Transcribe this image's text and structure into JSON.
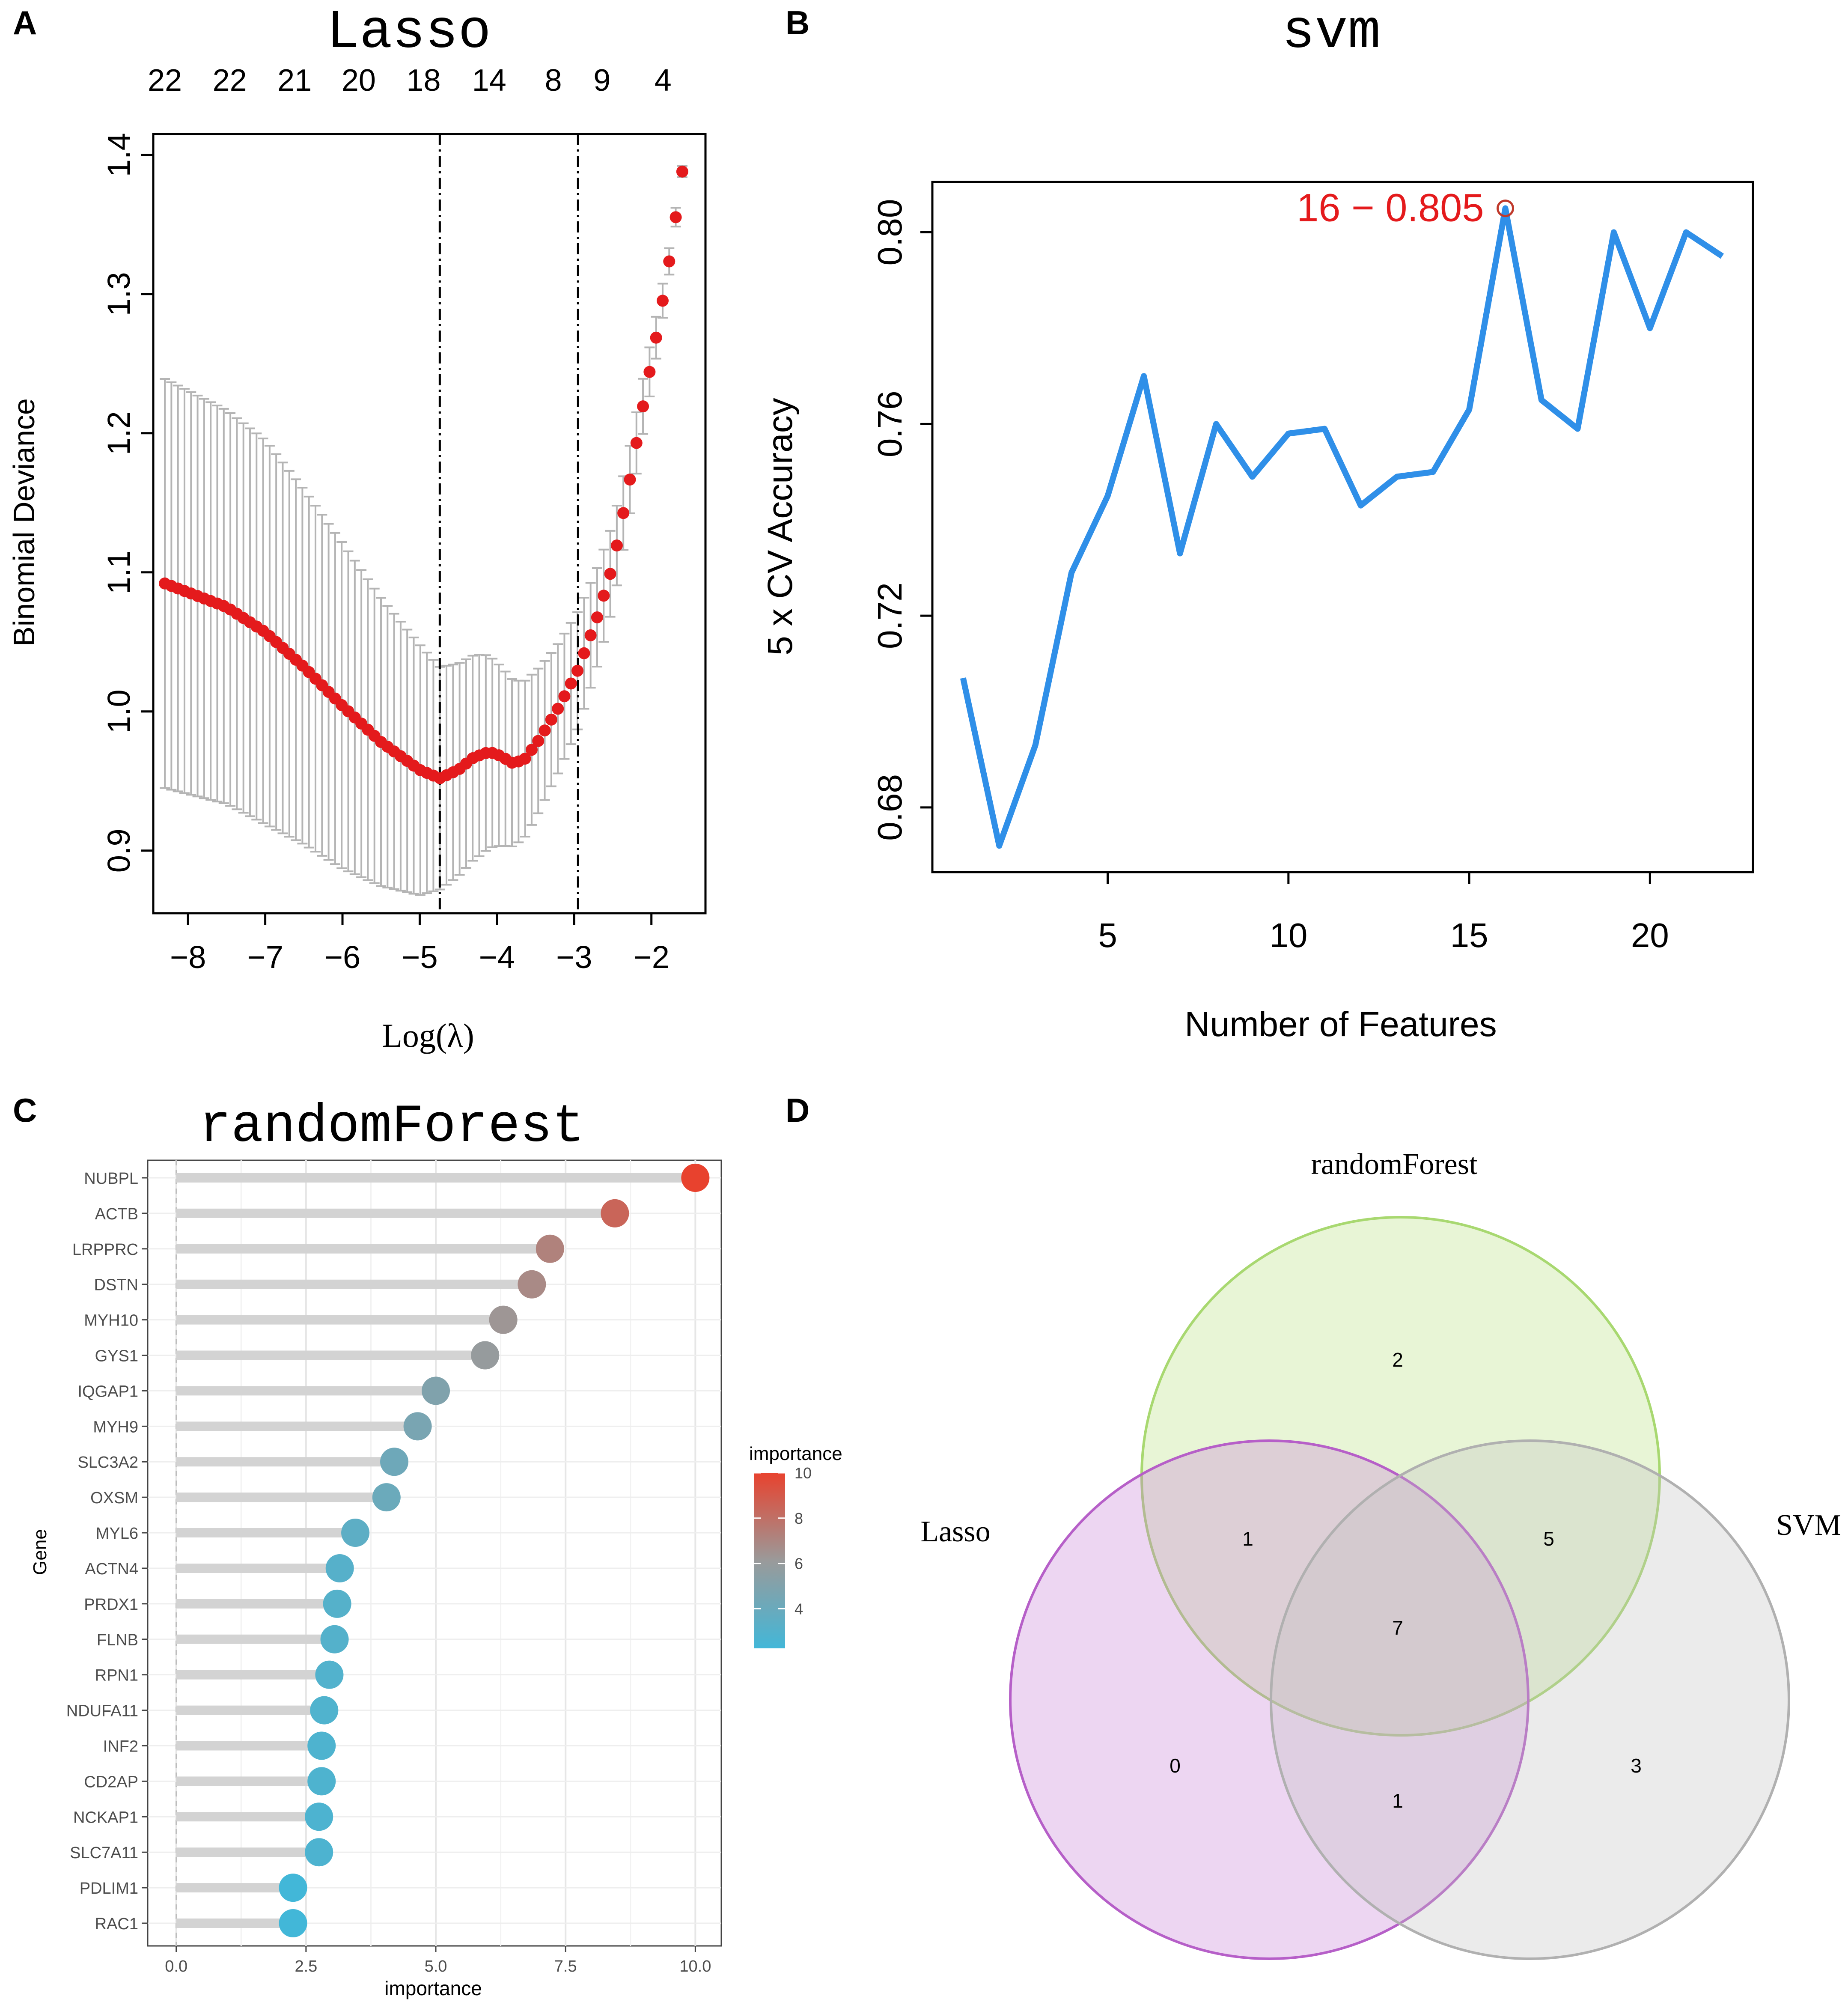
{
  "colors": {
    "lasso_point": "#e41a1c",
    "lasso_errorbar": "#b4b4b4",
    "svm_line": "#2f8fe8",
    "svm_annot": "#e41a1c",
    "rf_stem": "#d3d3d3",
    "rf_low": "#42b7d8",
    "rf_mid": "#9a9a9a",
    "rf_high": "#e8422e",
    "venn_rf": "#b9e07f",
    "venn_lasso": "#c77fd6",
    "venn_svm": "#c0c0c0"
  },
  "panels": {
    "A": {
      "label": "A"
    },
    "B": {
      "label": "B"
    },
    "C": {
      "label": "C"
    },
    "D": {
      "label": "D"
    }
  },
  "chart_data": [
    {
      "id": "lasso",
      "type": "scatter",
      "title": "Lasso",
      "xlabel": "Log(λ)",
      "ylabel": "Binomial Deviance",
      "xlim": [
        -8.45,
        -1.3
      ],
      "ylim": [
        0.855,
        1.415
      ],
      "xticks": [
        -8,
        -7,
        -6,
        -5,
        -4,
        -3,
        -2
      ],
      "xtick_labels": [
        "−8",
        "−7",
        "−6",
        "−5",
        "−4",
        "−3",
        "−2"
      ],
      "yticks": [
        0.9,
        1.0,
        1.1,
        1.2,
        1.3,
        1.4
      ],
      "ytick_labels": [
        "0.9",
        "1.0",
        "1.1",
        "1.2",
        "1.3",
        "1.4"
      ],
      "top_axis_labels": [
        "22",
        "22",
        "21",
        "20",
        "18",
        "14",
        "8",
        "9",
        "4"
      ],
      "top_axis_positions": [
        -8.3,
        -7.46,
        -6.62,
        -5.79,
        -4.95,
        -4.1,
        -3.27,
        -2.64,
        -1.85
      ],
      "vlines": [
        -4.74,
        -2.95
      ],
      "x_start": -8.3,
      "x_end": -1.6,
      "n_points": 80,
      "curve_anchors": [
        [
          -8.3,
          1.092
        ],
        [
          -7.5,
          1.075
        ],
        [
          -7.0,
          1.057
        ],
        [
          -6.5,
          1.032
        ],
        [
          -6.0,
          1.004
        ],
        [
          -5.5,
          0.978
        ],
        [
          -5.0,
          0.958
        ],
        [
          -4.74,
          0.952
        ],
        [
          -4.5,
          0.958
        ],
        [
          -4.3,
          0.967
        ],
        [
          -4.1,
          0.971
        ],
        [
          -3.95,
          0.968
        ],
        [
          -3.8,
          0.963
        ],
        [
          -3.65,
          0.965
        ],
        [
          -3.45,
          0.98
        ],
        [
          -3.2,
          1.003
        ],
        [
          -2.95,
          1.03
        ],
        [
          -2.7,
          1.068
        ],
        [
          -2.5,
          1.105
        ],
        [
          -2.3,
          1.16
        ],
        [
          -2.1,
          1.222
        ],
        [
          -1.9,
          1.28
        ],
        [
          -1.75,
          1.33
        ],
        [
          -1.6,
          1.388
        ]
      ],
      "error_anchors": [
        [
          -8.3,
          0.147
        ],
        [
          -7.0,
          0.138
        ],
        [
          -6.0,
          0.117
        ],
        [
          -5.0,
          0.09
        ],
        [
          -4.74,
          0.08
        ],
        [
          -4.2,
          0.072
        ],
        [
          -3.8,
          0.06
        ],
        [
          -3.3,
          0.048
        ],
        [
          -2.95,
          0.042
        ],
        [
          -2.5,
          0.03
        ],
        [
          -2.0,
          0.017
        ],
        [
          -1.6,
          0.004
        ]
      ]
    },
    {
      "id": "svm",
      "type": "line",
      "title": "svm",
      "xlabel": "Number of Features",
      "ylabel": "5 x CV Accuracy",
      "x": [
        1,
        2,
        3,
        4,
        5,
        6,
        7,
        8,
        9,
        10,
        11,
        12,
        13,
        14,
        15,
        16,
        17,
        18,
        19,
        20,
        21,
        22
      ],
      "values": [
        0.707,
        0.672,
        0.693,
        0.729,
        0.745,
        0.77,
        0.733,
        0.76,
        0.749,
        0.758,
        0.759,
        0.743,
        0.749,
        0.75,
        0.763,
        0.805,
        0.765,
        0.759,
        0.8,
        0.78,
        0.8,
        0.795
      ],
      "xlim": [
        0.15,
        22.85
      ],
      "ylim": [
        0.6665,
        0.8105
      ],
      "xticks": [
        5,
        10,
        15,
        20
      ],
      "yticks": [
        0.68,
        0.72,
        0.76,
        0.8
      ],
      "ytick_labels": [
        "0.68",
        "0.72",
        "0.76",
        "0.80"
      ],
      "highlight": {
        "x": 16,
        "y": 0.805,
        "label": "16 − 0.805"
      }
    },
    {
      "id": "randomForest",
      "type": "lollipop",
      "title": "randomForest",
      "xlabel": "importance",
      "ylabel": "Gene",
      "xlim": [
        -0.55,
        10.5
      ],
      "xticks": [
        0.0,
        2.5,
        5.0,
        7.5,
        10.0
      ],
      "xtick_labels": [
        "0.0",
        "2.5",
        "5.0",
        "7.5",
        "10.0"
      ],
      "categories": [
        "NUBPL",
        "ACTB",
        "LRPPRC",
        "DSTN",
        "MYH10",
        "GYS1",
        "IQGAP1",
        "MYH9",
        "SLC3A2",
        "OXSM",
        "MYL6",
        "ACTN4",
        "PRDX1",
        "FLNB",
        "RPN1",
        "NDUFA11",
        "INF2",
        "CD2AP",
        "NCKAP1",
        "SLC7A11",
        "PDLIM1",
        "RAC1"
      ],
      "values": [
        10.0,
        8.45,
        7.2,
        6.85,
        6.3,
        5.95,
        5.0,
        4.65,
        4.2,
        4.05,
        3.45,
        3.15,
        3.1,
        3.05,
        2.95,
        2.85,
        2.8,
        2.8,
        2.75,
        2.75,
        2.25,
        2.25
      ],
      "legend": {
        "title": "importance",
        "ticks": [
          4,
          6,
          8,
          10
        ],
        "tick_labels": [
          "4",
          "6",
          "8",
          "10"
        ],
        "range": [
          2.25,
          10.0
        ]
      }
    },
    {
      "id": "venn",
      "type": "venn",
      "sets": [
        "randomForest",
        "Lasso",
        "SVM"
      ],
      "regions": {
        "rf_only": "2",
        "lasso_rf": "1",
        "rf_svm": "5",
        "all_three": "7",
        "lasso_only": "0",
        "lasso_svm": "1",
        "svm_only": "3"
      }
    }
  ]
}
